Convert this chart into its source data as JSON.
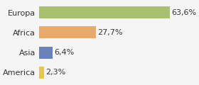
{
  "categories": [
    "America",
    "Asia",
    "Africa",
    "Europa"
  ],
  "values": [
    2.3,
    6.4,
    27.7,
    63.6
  ],
  "labels": [
    "2,3%",
    "6,4%",
    "27,7%",
    "63,6%"
  ],
  "bar_colors": [
    "#e8c84a",
    "#6a82b8",
    "#e8aa6a",
    "#a8c070"
  ],
  "background_color": "#f5f5f5",
  "xlim": [
    0,
    75
  ],
  "bar_height": 0.6,
  "fontsize_labels": 8,
  "fontsize_values": 8
}
